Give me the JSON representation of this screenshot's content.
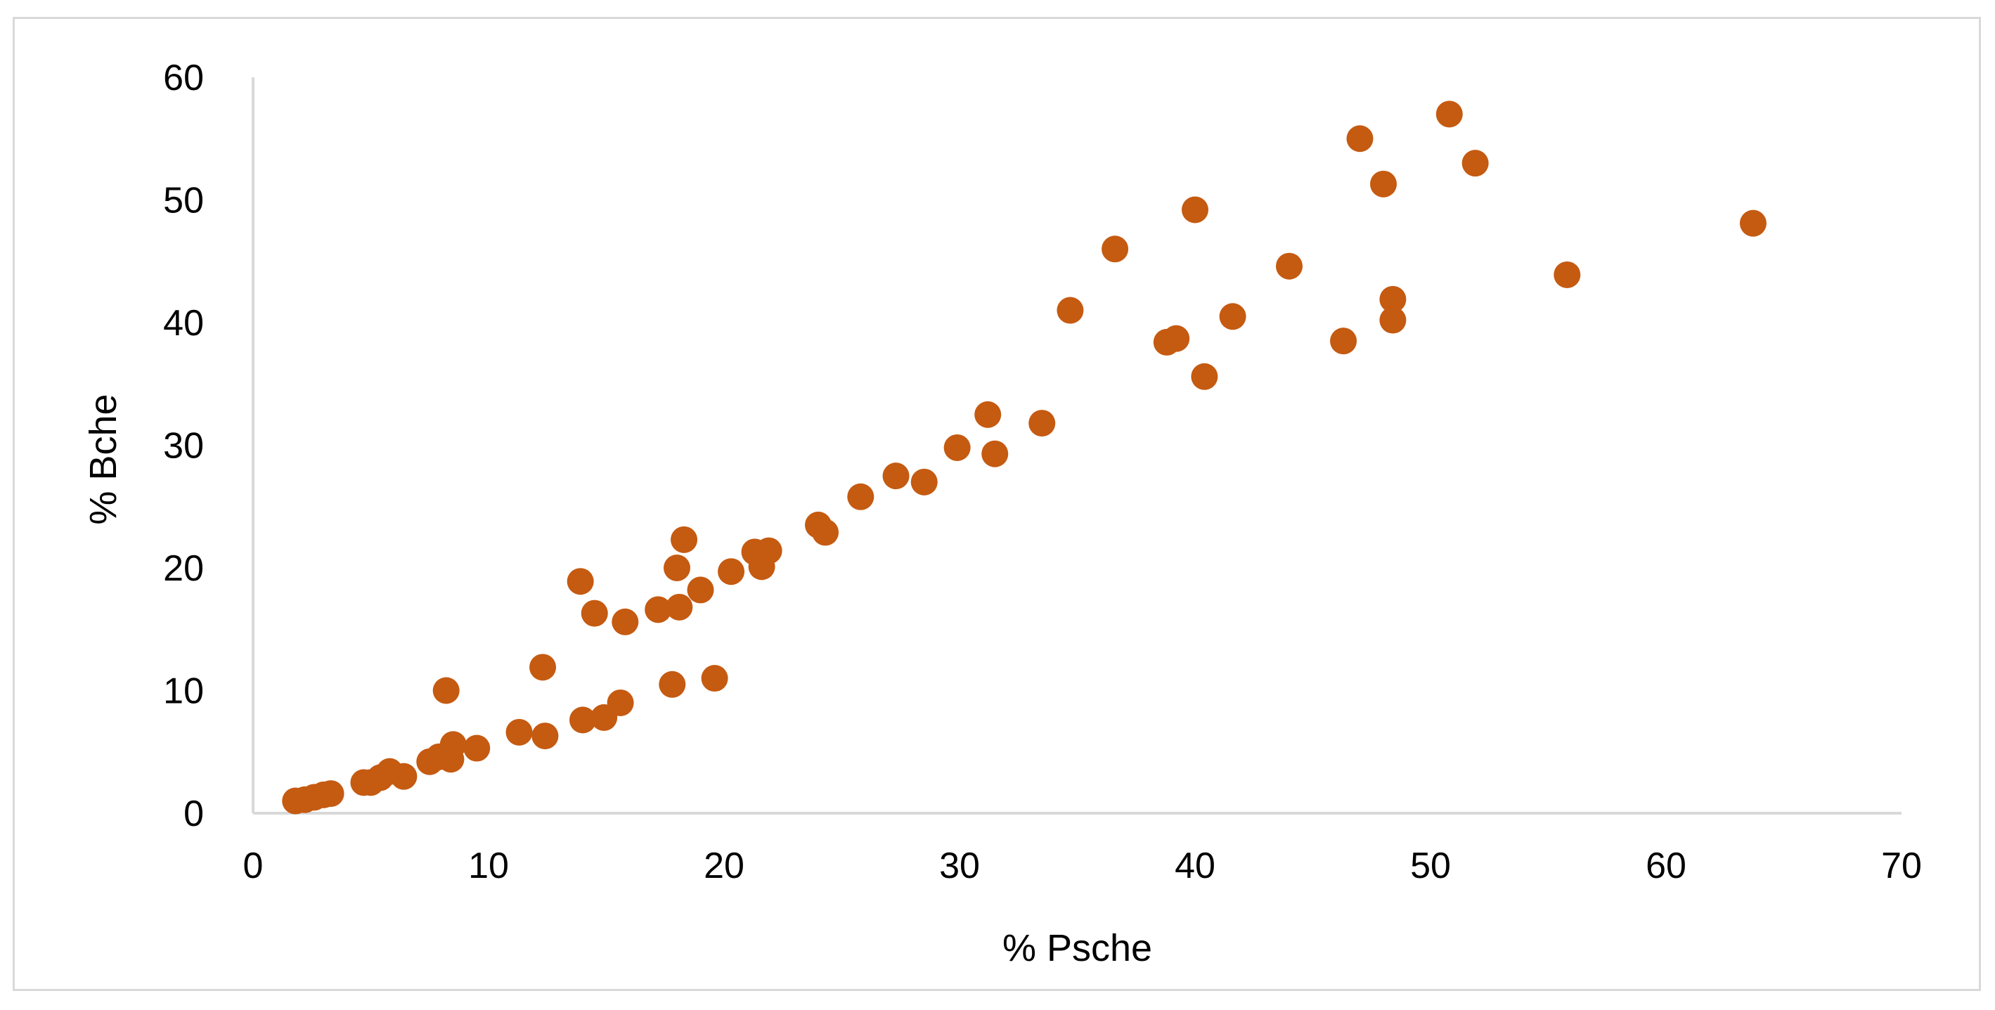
{
  "chart_data": {
    "type": "scatter",
    "title": "",
    "xlabel": "% Psche",
    "ylabel": "% Bche",
    "xlim": [
      0,
      70
    ],
    "ylim": [
      0,
      60
    ],
    "x_ticks": [
      0,
      10,
      20,
      30,
      40,
      50,
      60,
      70
    ],
    "y_ticks": [
      0,
      10,
      20,
      30,
      40,
      50,
      60
    ],
    "grid": false,
    "legend": "none",
    "marker_color": "#C55A11",
    "axis_color": "#d9d9d9",
    "series": [
      {
        "points": [
          [
            1.8,
            1.0
          ],
          [
            2.2,
            1.1
          ],
          [
            2.6,
            1.3
          ],
          [
            3.0,
            1.5
          ],
          [
            3.3,
            1.6
          ],
          [
            4.7,
            2.5
          ],
          [
            5.0,
            2.5
          ],
          [
            5.4,
            2.9
          ],
          [
            5.8,
            3.4
          ],
          [
            6.4,
            3.0
          ],
          [
            7.5,
            4.2
          ],
          [
            7.9,
            4.6
          ],
          [
            8.4,
            4.4
          ],
          [
            8.5,
            5.6
          ],
          [
            9.5,
            5.3
          ],
          [
            8.2,
            10.0
          ],
          [
            11.3,
            6.6
          ],
          [
            12.4,
            6.3
          ],
          [
            12.3,
            11.9
          ],
          [
            14.0,
            7.6
          ],
          [
            14.9,
            7.8
          ],
          [
            15.6,
            9.0
          ],
          [
            13.9,
            18.9
          ],
          [
            14.5,
            16.3
          ],
          [
            15.8,
            15.6
          ],
          [
            17.2,
            16.6
          ],
          [
            17.8,
            10.5
          ],
          [
            18.1,
            16.8
          ],
          [
            18.0,
            20.0
          ],
          [
            18.3,
            22.3
          ],
          [
            19.0,
            18.2
          ],
          [
            19.6,
            11.0
          ],
          [
            20.3,
            19.7
          ],
          [
            21.3,
            21.3
          ],
          [
            21.6,
            20.1
          ],
          [
            21.9,
            21.4
          ],
          [
            24.0,
            23.5
          ],
          [
            24.3,
            22.9
          ],
          [
            25.8,
            25.8
          ],
          [
            27.3,
            27.5
          ],
          [
            28.5,
            27.0
          ],
          [
            29.9,
            29.8
          ],
          [
            31.2,
            32.5
          ],
          [
            31.5,
            29.3
          ],
          [
            33.5,
            31.8
          ],
          [
            34.7,
            41.0
          ],
          [
            36.6,
            46.0
          ],
          [
            38.8,
            38.4
          ],
          [
            39.2,
            38.7
          ],
          [
            40.0,
            49.2
          ],
          [
            40.4,
            35.6
          ],
          [
            41.6,
            40.5
          ],
          [
            44.0,
            44.6
          ],
          [
            46.3,
            38.5
          ],
          [
            47.0,
            55.0
          ],
          [
            48.0,
            51.3
          ],
          [
            48.4,
            41.9
          ],
          [
            48.4,
            40.2
          ],
          [
            50.8,
            57.0
          ],
          [
            51.9,
            53.0
          ],
          [
            55.8,
            43.9
          ],
          [
            63.7,
            48.1
          ]
        ]
      }
    ]
  }
}
